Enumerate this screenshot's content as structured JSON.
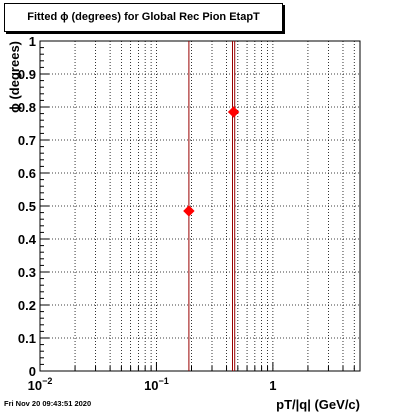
{
  "chart_data": {
    "type": "scatter",
    "title": "Fitted ϕ (degrees) for Global Rec Pion EtapT",
    "xlabel": "pT/|q| (GeV/c)",
    "ylabel": "ϕ (degrees)",
    "xscale": "log",
    "xlim": [
      0.01,
      5.6
    ],
    "ylim": [
      0,
      1
    ],
    "grid": true,
    "x_major_ticks": [
      {
        "value": 0.01,
        "base": "10",
        "exp": "−2"
      },
      {
        "value": 0.1,
        "base": "10",
        "exp": "−1"
      },
      {
        "value": 1,
        "base": "1",
        "exp": ""
      }
    ],
    "y_ticks": [
      {
        "value": 0,
        "label": "0"
      },
      {
        "value": 0.1,
        "label": "0.1"
      },
      {
        "value": 0.2,
        "label": "0.2"
      },
      {
        "value": 0.3,
        "label": "0.3"
      },
      {
        "value": 0.4,
        "label": "0.4"
      },
      {
        "value": 0.5,
        "label": "0.5"
      },
      {
        "value": 0.6,
        "label": "0.6"
      },
      {
        "value": 0.7,
        "label": "0.7"
      },
      {
        "value": 0.8,
        "label": "0.8"
      },
      {
        "value": 0.9,
        "label": "0.9"
      },
      {
        "value": 1,
        "label": "1"
      }
    ],
    "points": [
      {
        "x": 0.19,
        "y": 0.485,
        "x_err_low": 0.19,
        "x_err_high": 0.19
      },
      {
        "x": 0.46,
        "y": 0.785,
        "x_err_low": 0.45,
        "x_err_high": 0.47
      }
    ],
    "marker_color": "#ff0000",
    "errorbar_color": "#990000"
  },
  "footer_text": "Fri Nov 20 09:43:51 2020"
}
